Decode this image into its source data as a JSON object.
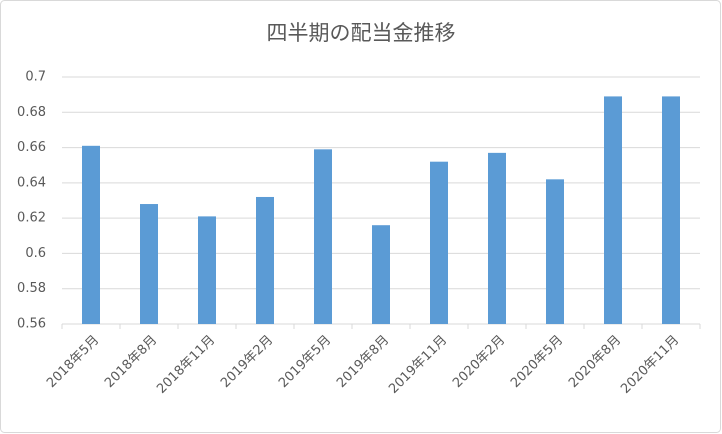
{
  "chart_data": {
    "type": "bar",
    "title": "四半期の配当金推移",
    "categories": [
      "2018年5月",
      "2018年8月",
      "2018年11月",
      "2019年2月",
      "2019年5月",
      "2019年8月",
      "2019年11月",
      "2020年2月",
      "2020年5月",
      "2020年8月",
      "2020年11月"
    ],
    "values": [
      0.661,
      0.628,
      0.621,
      0.632,
      0.659,
      0.616,
      0.652,
      0.657,
      0.642,
      0.689,
      0.689
    ],
    "color": "#5b9bd5",
    "ylim": [
      0.56,
      0.7
    ],
    "yticks": [
      0.56,
      0.58,
      0.6,
      0.62,
      0.64,
      0.66,
      0.68,
      0.7
    ],
    "grid": true
  }
}
